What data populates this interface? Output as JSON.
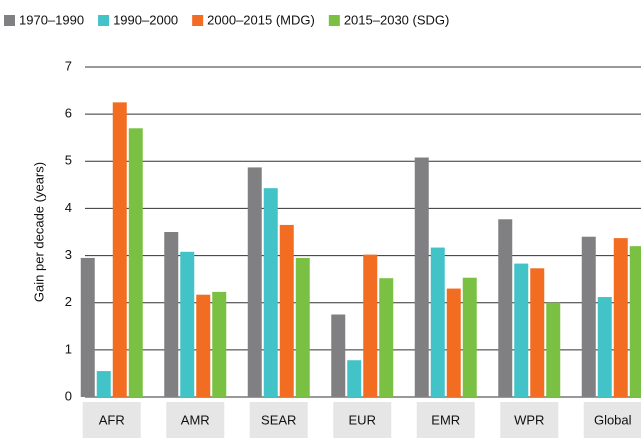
{
  "chart_data": {
    "type": "bar",
    "y_label": "Gain per decade (years)",
    "categories": [
      "AFR",
      "AMR",
      "SEAR",
      "EUR",
      "EMR",
      "WPR",
      "Global"
    ],
    "series": [
      {
        "name": "1970–1990",
        "color": "#808082",
        "values": [
          2.95,
          3.5,
          4.87,
          1.75,
          5.08,
          3.77,
          3.4
        ]
      },
      {
        "name": "1990–2000",
        "color": "#41c3c8",
        "values": [
          0.55,
          3.08,
          4.43,
          0.78,
          3.17,
          2.83,
          2.12
        ]
      },
      {
        "name": "2000–2015 (MDG)",
        "color": "#f26c22",
        "values": [
          6.25,
          2.17,
          3.65,
          3.02,
          2.3,
          2.73,
          3.37
        ]
      },
      {
        "name": "2015–2030 (SDG)",
        "color": "#7ac143",
        "values": [
          5.7,
          2.23,
          2.95,
          2.52,
          2.53,
          2.0,
          3.2
        ]
      }
    ],
    "ylim": [
      0,
      7
    ],
    "yticks": [
      0,
      1,
      2,
      3,
      4,
      5,
      6,
      7
    ],
    "grid": true
  }
}
